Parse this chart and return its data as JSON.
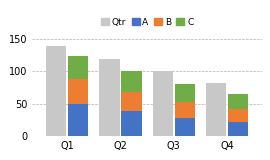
{
  "categories": [
    "Q1",
    "Q2",
    "Q3",
    "Q4"
  ],
  "qtr": [
    138,
    118,
    100,
    82
  ],
  "A": [
    50,
    38,
    28,
    22
  ],
  "B": [
    38,
    30,
    25,
    20
  ],
  "C": [
    35,
    32,
    27,
    23
  ],
  "color_qtr": "#c8c8c8",
  "color_A": "#4472c4",
  "color_B": "#ed7d31",
  "color_C": "#70ad47",
  "ylim": [
    0,
    165
  ],
  "yticks": [
    0,
    50,
    100,
    150
  ],
  "background_color": "#ffffff",
  "legend_labels": [
    "Qtr",
    "A",
    "B",
    "C"
  ]
}
